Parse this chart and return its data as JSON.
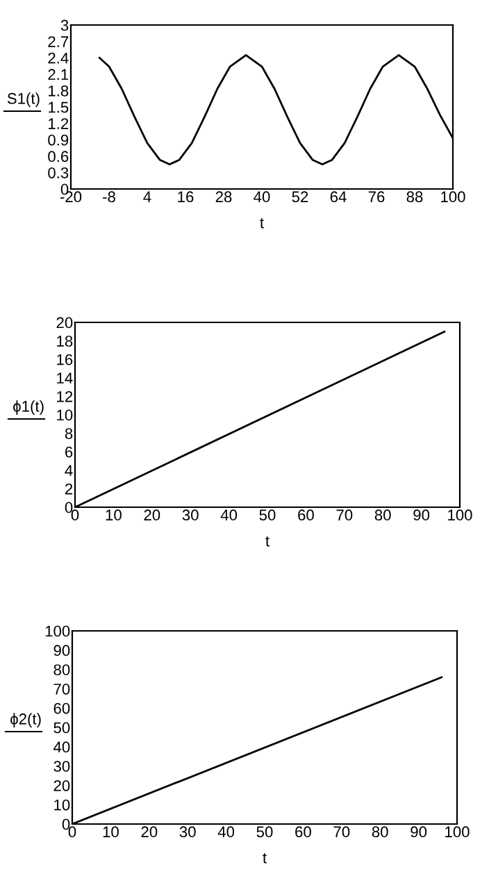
{
  "chart_data": [
    {
      "type": "line",
      "xlabel": "t",
      "ylabel": "S1(t)",
      "x": [
        -11,
        -8,
        -4,
        0,
        4,
        8,
        11,
        14,
        18,
        22,
        26,
        30,
        35,
        40,
        44,
        48,
        52,
        56,
        59,
        62,
        66,
        70,
        74,
        78,
        83,
        88,
        92,
        96,
        100
      ],
      "series": [
        {
          "color": "#000000",
          "values": [
            2.4,
            2.24,
            1.83,
            1.32,
            0.84,
            0.53,
            0.45,
            0.53,
            0.84,
            1.32,
            1.83,
            2.24,
            2.45,
            2.24,
            1.83,
            1.32,
            0.84,
            0.53,
            0.45,
            0.53,
            0.84,
            1.32,
            1.83,
            2.24,
            2.45,
            2.24,
            1.83,
            1.35,
            0.93
          ]
        }
      ],
      "xlim": [
        -20,
        100
      ],
      "xticks": [
        -20,
        -8,
        4,
        16,
        28,
        40,
        52,
        64,
        76,
        88,
        100
      ],
      "ylim": [
        0,
        3
      ],
      "yticks": [
        0,
        0.3,
        0.6,
        0.9,
        1.2,
        1.5,
        1.8,
        2.1,
        2.4,
        2.7,
        3
      ],
      "grid": false,
      "legend": false
    },
    {
      "type": "line",
      "xlabel": "t",
      "ylabel": "ϕ1(t)",
      "x": [
        0,
        96
      ],
      "series": [
        {
          "color": "#000000",
          "values": [
            0,
            19
          ]
        }
      ],
      "xlim": [
        0,
        100
      ],
      "xticks": [
        0,
        10,
        20,
        30,
        40,
        50,
        60,
        70,
        80,
        90,
        100
      ],
      "ylim": [
        0,
        20
      ],
      "yticks": [
        0,
        2,
        4,
        6,
        8,
        10,
        12,
        14,
        16,
        18,
        20
      ],
      "grid": false,
      "legend": false
    },
    {
      "type": "line",
      "xlabel": "t",
      "ylabel": "ϕ2(t)",
      "x": [
        0,
        96
      ],
      "series": [
        {
          "color": "#000000",
          "values": [
            0,
            76
          ]
        }
      ],
      "xlim": [
        0,
        100
      ],
      "xticks": [
        0,
        10,
        20,
        30,
        40,
        50,
        60,
        70,
        80,
        90,
        100
      ],
      "ylim": [
        0,
        100
      ],
      "yticks": [
        0,
        10,
        20,
        30,
        40,
        50,
        60,
        70,
        80,
        90,
        100
      ],
      "grid": false,
      "legend": false
    }
  ]
}
